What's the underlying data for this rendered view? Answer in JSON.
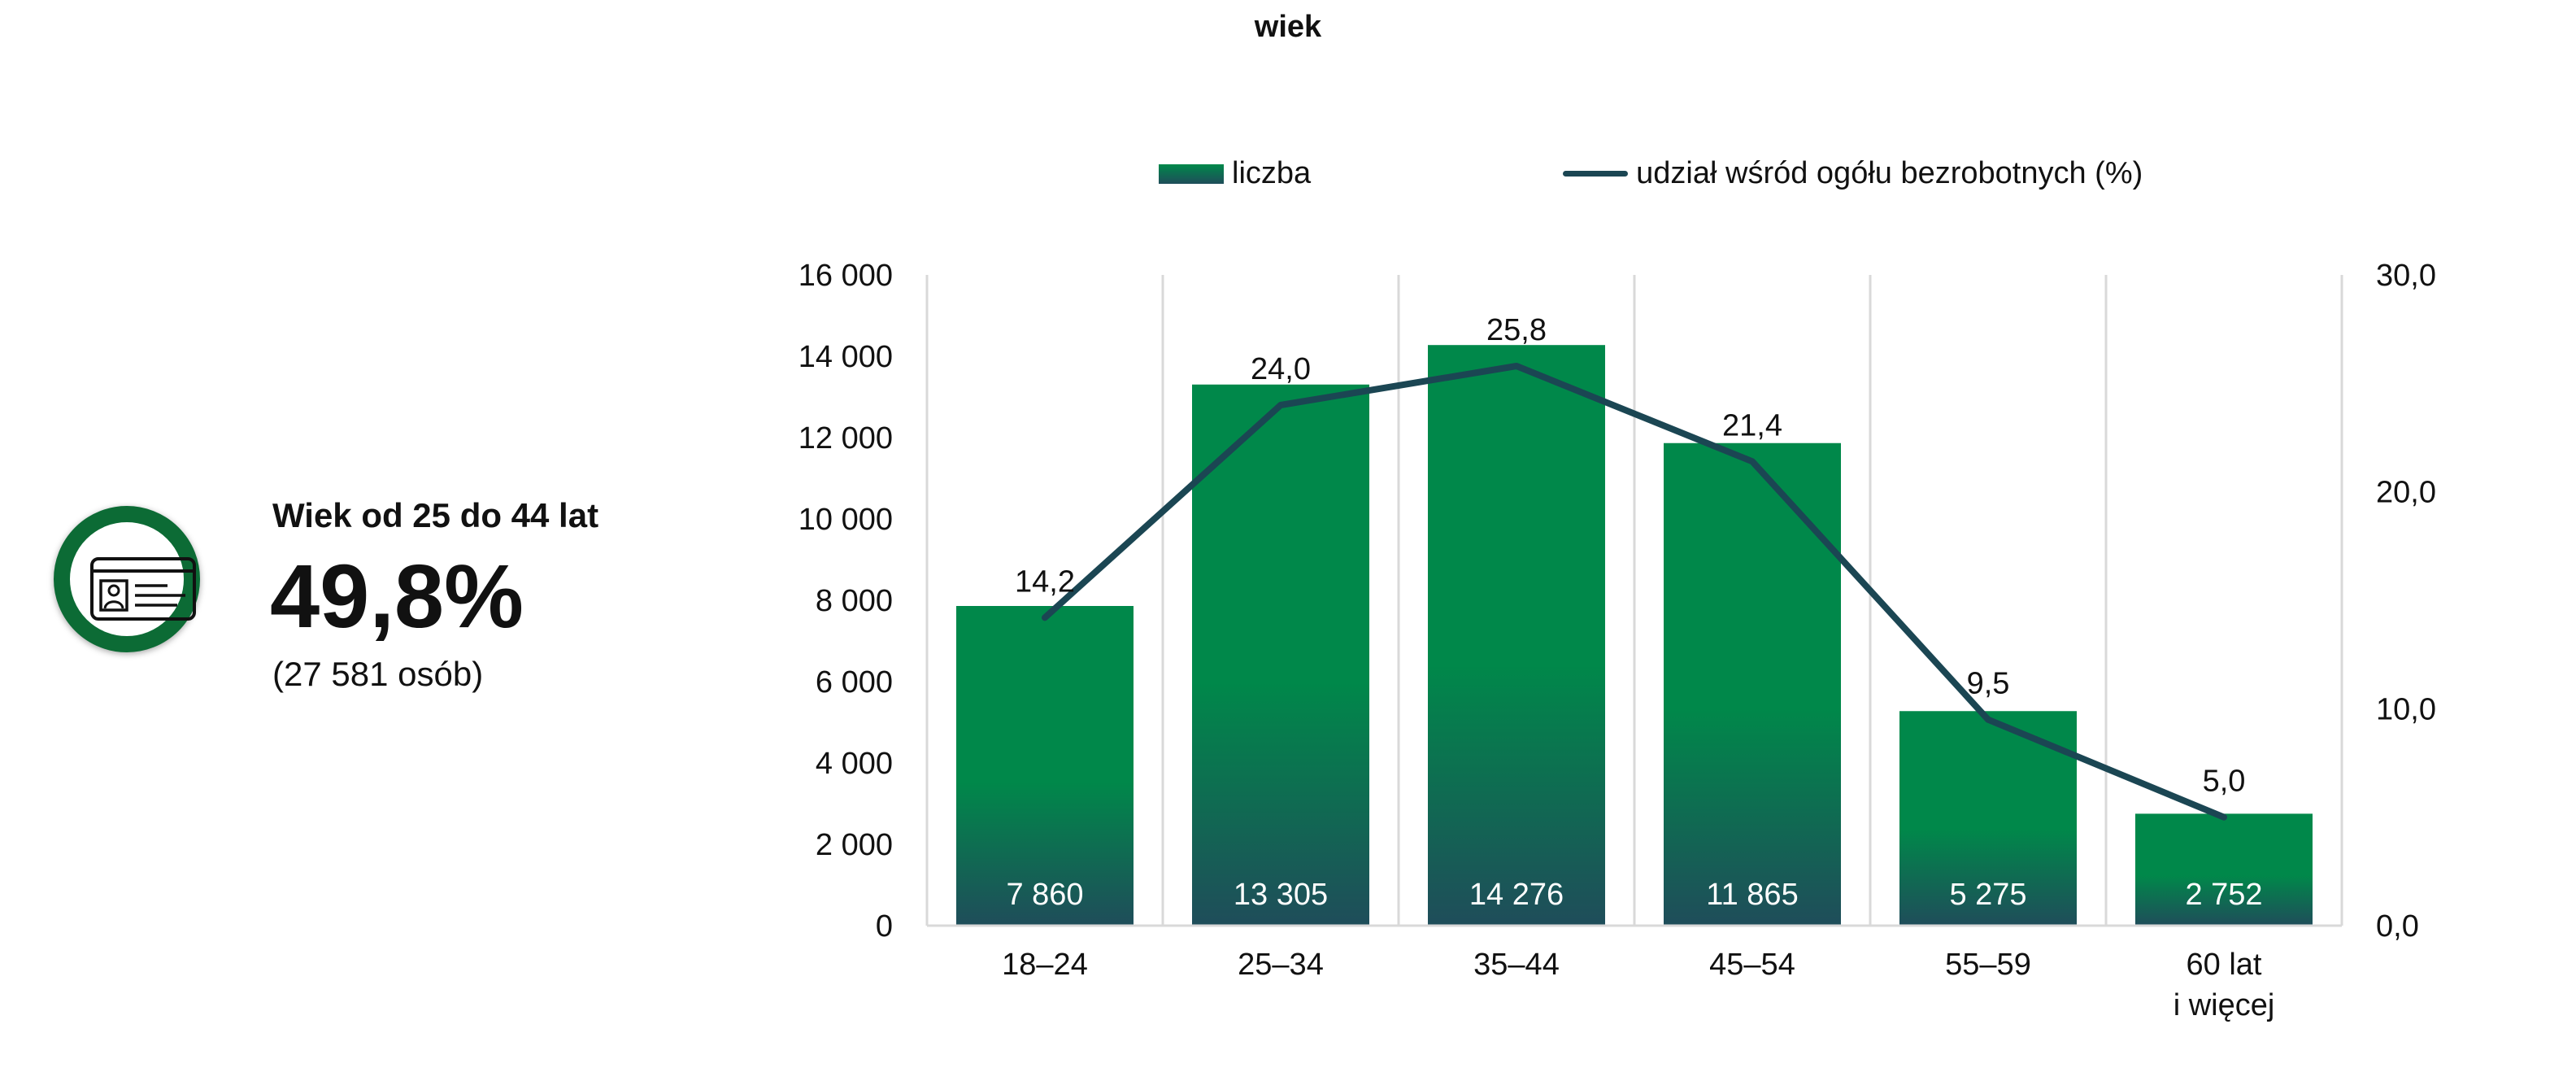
{
  "kpi": {
    "icon": "id-card-icon",
    "heading": "Wiek od 25 do 44 lat",
    "value": "49,8%",
    "subtext": "(27 581 osób)",
    "ring_color": "#0c6b35"
  },
  "colors": {
    "bar_top": "#00884a",
    "bar_bottom": "#1f4d5a",
    "line": "#1b4653",
    "grid": "#d9d9d9"
  },
  "chart_data": {
    "type": "bar",
    "title": "wiek",
    "legend_placement": "top",
    "categories": [
      [
        "18–24"
      ],
      [
        "25–34"
      ],
      [
        "35–44"
      ],
      [
        "45–54"
      ],
      [
        "55–59"
      ],
      [
        "60 lat",
        "i więcej"
      ]
    ],
    "series": [
      {
        "name": "liczba",
        "type": "bar",
        "axis": "left",
        "values": [
          7860,
          13305,
          14276,
          11865,
          5275,
          2752
        ],
        "labels": [
          "7 860",
          "13 305",
          "14 276",
          "11 865",
          "5 275",
          "2 752"
        ]
      },
      {
        "name": "udział wśród ogółu bezrobotnych (%)",
        "type": "line",
        "axis": "right",
        "values": [
          14.2,
          24.0,
          25.8,
          21.4,
          9.5,
          5.0
        ],
        "labels": [
          "14,2",
          "24,0",
          "25,8",
          "21,4",
          "9,5",
          "5,0"
        ]
      }
    ],
    "y_left": {
      "min": 0,
      "max": 16000,
      "ticks": [
        "0",
        "2 000",
        "4 000",
        "6 000",
        "8 000",
        "10 000",
        "12 000",
        "14 000",
        "16 000"
      ]
    },
    "y_right": {
      "min": 0,
      "max": 30,
      "ticks": [
        "0,0",
        "10,0",
        "20,0",
        "30,0"
      ]
    },
    "grid": "vertical"
  }
}
